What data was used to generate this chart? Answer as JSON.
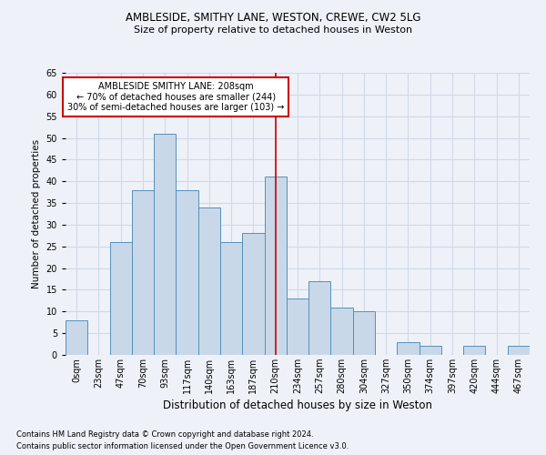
{
  "title1": "AMBLESIDE, SMITHY LANE, WESTON, CREWE, CW2 5LG",
  "title2": "Size of property relative to detached houses in Weston",
  "xlabel": "Distribution of detached houses by size in Weston",
  "ylabel": "Number of detached properties",
  "footnote1": "Contains HM Land Registry data © Crown copyright and database right 2024.",
  "footnote2": "Contains public sector information licensed under the Open Government Licence v3.0.",
  "bin_labels": [
    "0sqm",
    "23sqm",
    "47sqm",
    "70sqm",
    "93sqm",
    "117sqm",
    "140sqm",
    "163sqm",
    "187sqm",
    "210sqm",
    "234sqm",
    "257sqm",
    "280sqm",
    "304sqm",
    "327sqm",
    "350sqm",
    "374sqm",
    "397sqm",
    "420sqm",
    "444sqm",
    "467sqm"
  ],
  "bar_heights": [
    8,
    0,
    26,
    38,
    51,
    38,
    34,
    26,
    28,
    41,
    13,
    17,
    11,
    10,
    0,
    3,
    2,
    0,
    2,
    0,
    2
  ],
  "bar_color": "#c8d8e8",
  "bar_edgecolor": "#5590bb",
  "grid_color": "#d0d8e8",
  "background_color": "#eef2f8",
  "vline_x_index": 9,
  "vline_color": "#cc0000",
  "annotation_text": "AMBLESIDE SMITHY LANE: 208sqm\n← 70% of detached houses are smaller (244)\n30% of semi-detached houses are larger (103) →",
  "annotation_box_edgecolor": "#cc0000",
  "annotation_box_facecolor": "#ffffff",
  "ylim": [
    0,
    65
  ],
  "yticks": [
    0,
    5,
    10,
    15,
    20,
    25,
    30,
    35,
    40,
    45,
    50,
    55,
    60,
    65
  ],
  "num_bins": 21,
  "title1_fontsize": 8.5,
  "title2_fontsize": 8.0,
  "xlabel_fontsize": 8.5,
  "ylabel_fontsize": 7.5,
  "tick_fontsize": 7.0,
  "footnote_fontsize": 6.0
}
